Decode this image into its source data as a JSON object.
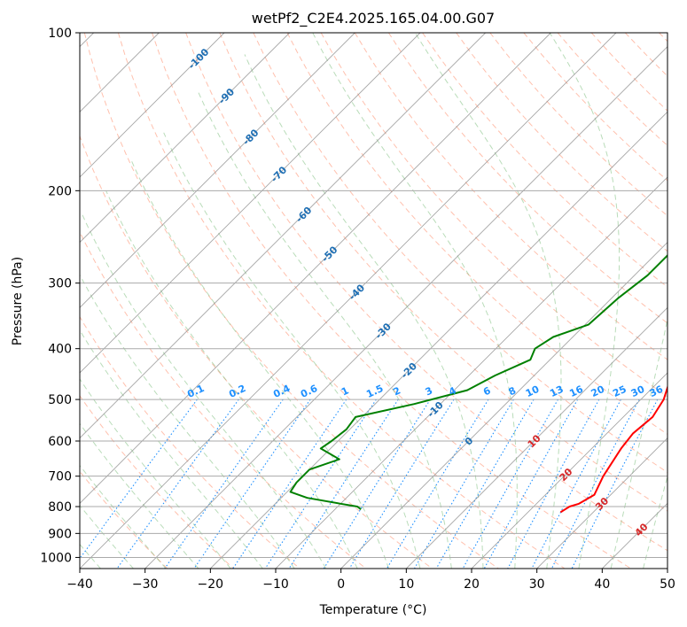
{
  "chart_data": {
    "type": "skew-t",
    "title": "wetPf2_C2E4.2025.165.04.00.G07",
    "xlabel": "Temperature (°C)",
    "ylabel": "Pressure (hPa)",
    "xlim": [
      -40,
      50
    ],
    "ylim": [
      1050,
      100
    ],
    "y_scale": "log",
    "x_ticks": [
      -40,
      -30,
      -20,
      -10,
      0,
      10,
      20,
      30,
      40,
      50
    ],
    "y_ticks": [
      100,
      200,
      300,
      400,
      500,
      600,
      700,
      800,
      900,
      1000
    ],
    "grid": true,
    "colors": {
      "temperature": "#ff0000",
      "dewpoint": "#008000",
      "dry_adiabats": "#ff8c69",
      "moist_adiabats": "#7fbf7f",
      "mixing_ratio": "#1e90ff",
      "isotherms": "#888888"
    },
    "series": [
      {
        "key": "temperature",
        "points": [
          [
            100,
            2.0
          ],
          [
            120,
            -2.0
          ],
          [
            135,
            -0.5
          ],
          [
            150,
            1.5
          ],
          [
            170,
            3.0
          ],
          [
            200,
            5.5
          ],
          [
            230,
            6.5
          ],
          [
            260,
            8.5
          ],
          [
            300,
            12.0
          ],
          [
            350,
            14.0
          ],
          [
            400,
            17.0
          ],
          [
            450,
            21.0
          ],
          [
            500,
            23.5
          ],
          [
            540,
            24.5
          ],
          [
            580,
            24.0
          ],
          [
            620,
            24.5
          ],
          [
            700,
            26.0
          ],
          [
            760,
            27.5
          ],
          [
            790,
            26.5
          ],
          [
            800,
            25.5
          ],
          [
            820,
            25.0
          ]
        ]
      },
      {
        "key": "dewpoint",
        "points": [
          [
            100,
            2.0
          ],
          [
            110,
            -1.0
          ],
          [
            120,
            -2.0
          ],
          [
            135,
            -1.5
          ],
          [
            150,
            -4.0
          ],
          [
            170,
            -3.5
          ],
          [
            190,
            -4.0
          ],
          [
            200,
            -3.5
          ],
          [
            210,
            -1.0
          ],
          [
            230,
            1.5
          ],
          [
            260,
            2.0
          ],
          [
            290,
            2.0
          ],
          [
            320,
            1.0
          ],
          [
            360,
            0.5
          ],
          [
            380,
            -3.0
          ],
          [
            400,
            -4.0
          ],
          [
            420,
            -3.0
          ],
          [
            450,
            -6.0
          ],
          [
            480,
            -8.0
          ],
          [
            510,
            -14.0
          ],
          [
            540,
            -21.0
          ],
          [
            570,
            -20.5
          ],
          [
            600,
            -21.0
          ],
          [
            620,
            -21.5
          ],
          [
            650,
            -17.0
          ],
          [
            680,
            -20.0
          ],
          [
            720,
            -20.0
          ],
          [
            750,
            -19.5
          ],
          [
            770,
            -16.0
          ],
          [
            790,
            -10.0
          ],
          [
            800,
            -7.0
          ],
          [
            810,
            -6.0
          ]
        ]
      }
    ],
    "dry_adiabat_labels": [
      "-100",
      "-90",
      "-80",
      "-70",
      "-60",
      "-50",
      "-40",
      "-30",
      "-20",
      "-10",
      "0"
    ],
    "moist_adiabat_labels": [
      "10",
      "20",
      "30",
      "40"
    ],
    "mixing_ratio_labels": [
      "0.1",
      "0.2",
      "0.4",
      "0.6",
      "1",
      "1.5",
      "2",
      "3",
      "4",
      "6",
      "8",
      "10",
      "13",
      "16",
      "20",
      "25",
      "30",
      "36"
    ]
  }
}
